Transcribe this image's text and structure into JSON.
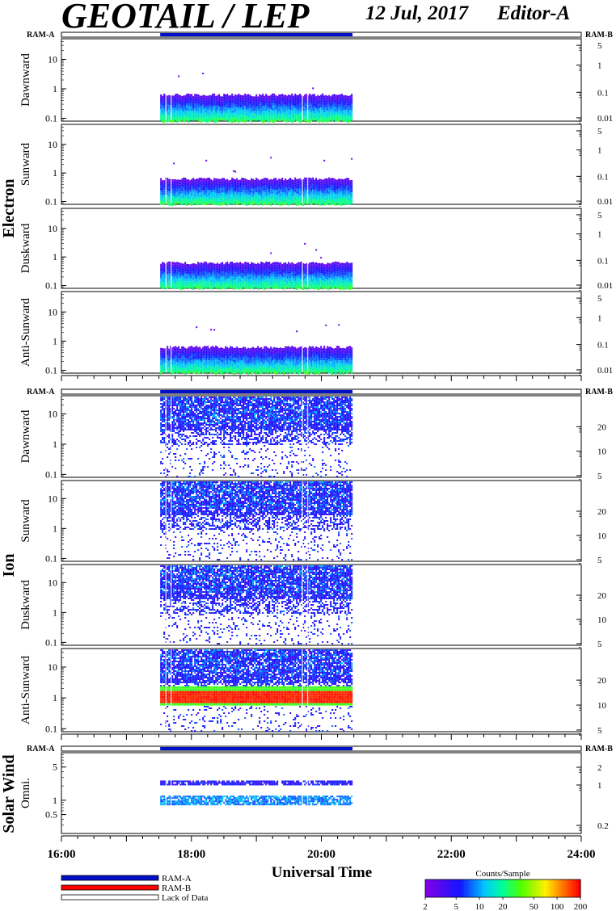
{
  "header": {
    "title": "GEOTAIL / LEP",
    "date": "12 Jul, 2017",
    "editor": "Editor-A"
  },
  "colors": {
    "ram_a": "#0010c8",
    "ram_b": "#ff0000",
    "lack_of_data": "#ffffff"
  },
  "chart_data": {
    "type": "heatmap",
    "xlabel": "Universal Time",
    "x_ticks": [
      "16:00",
      "18:00",
      "20:00",
      "22:00",
      "24:00"
    ],
    "x_range_hours": [
      16,
      24
    ],
    "data_coverage_hours": [
      17.52,
      20.48
    ],
    "groups": [
      {
        "name": "Electron",
        "ram_a_label": "RAM-A",
        "ram_b_label": "RAM-B",
        "panels": [
          {
            "label": "Dawnward",
            "left_ticks": [
              "0.1",
              "1",
              "10"
            ],
            "right_ticks": [
              "0.01",
              "0.1",
              "1",
              "5"
            ],
            "pattern": "electron",
            "energy_range": [
              0.08,
              50
            ]
          },
          {
            "label": "Sunward",
            "left_ticks": [
              "0.1",
              "1",
              "10"
            ],
            "right_ticks": [
              "0.01",
              "0.1",
              "1",
              "5"
            ],
            "pattern": "electron",
            "energy_range": [
              0.08,
              50
            ]
          },
          {
            "label": "Duskward",
            "left_ticks": [
              "0.1",
              "1",
              "10"
            ],
            "right_ticks": [
              "0.01",
              "0.1",
              "1",
              "5"
            ],
            "pattern": "electron",
            "energy_range": [
              0.08,
              50
            ]
          },
          {
            "label": "Anti-Sunward",
            "left_ticks": [
              "0.1",
              "1",
              "10"
            ],
            "right_ticks": [
              "0.01",
              "0.1",
              "1",
              "5"
            ],
            "pattern": "electron",
            "energy_range": [
              0.08,
              50
            ]
          }
        ]
      },
      {
        "name": "Ion",
        "ram_a_label": "RAM-A",
        "ram_b_label": "RAM-B",
        "panels": [
          {
            "label": "Dawnward",
            "left_ticks": [
              "0.1",
              "1",
              "10"
            ],
            "right_ticks": [
              "5",
              "10",
              "20"
            ],
            "pattern": "ion",
            "energy_range": [
              0.08,
              40
            ]
          },
          {
            "label": "Sunward",
            "left_ticks": [
              "0.1",
              "1",
              "10"
            ],
            "right_ticks": [
              "5",
              "10",
              "20"
            ],
            "pattern": "ion",
            "energy_range": [
              0.08,
              40
            ]
          },
          {
            "label": "Duskward",
            "left_ticks": [
              "0.1",
              "1",
              "10"
            ],
            "right_ticks": [
              "5",
              "10",
              "20"
            ],
            "pattern": "ion",
            "energy_range": [
              0.08,
              40
            ]
          },
          {
            "label": "Anti-Sunward",
            "left_ticks": [
              "0.1",
              "1",
              "10"
            ],
            "right_ticks": [
              "5",
              "10",
              "20"
            ],
            "pattern": "ion_antisun",
            "energy_range": [
              0.08,
              40
            ]
          }
        ]
      },
      {
        "name": "Solar Wind",
        "ram_a_label": "RAM-A",
        "ram_b_label": "RAM-B",
        "panels": [
          {
            "label": "Omni.",
            "left_ticks": [
              "0.5",
              "1",
              "5"
            ],
            "right_ticks": [
              "0.2",
              "1",
              "2"
            ],
            "pattern": "sw",
            "energy_range": [
              0.2,
              10
            ]
          }
        ]
      }
    ],
    "legend": {
      "ram_a": "RAM-A",
      "ram_b": "RAM-B",
      "lack_of_data": "Lack of Data"
    },
    "colorbar": {
      "title": "Counts/Sample",
      "ticks": [
        "2",
        "5",
        "10",
        "20",
        "50",
        "100",
        "200"
      ],
      "range": [
        2,
        200
      ],
      "scale": "log"
    }
  }
}
